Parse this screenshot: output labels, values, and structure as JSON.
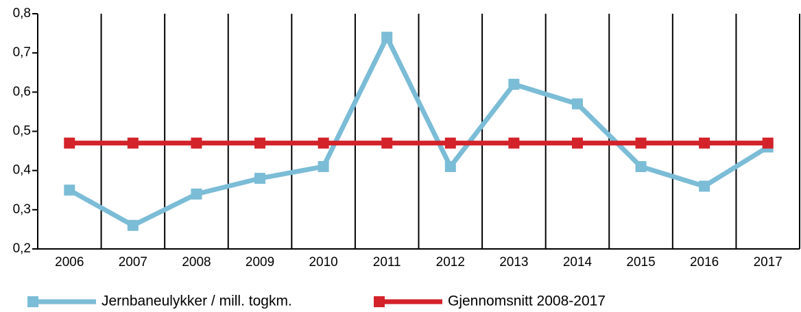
{
  "chart_data": {
    "type": "line",
    "categories": [
      "2006",
      "2007",
      "2008",
      "2009",
      "2010",
      "2011",
      "2012",
      "2013",
      "2014",
      "2015",
      "2016",
      "2017"
    ],
    "series": [
      {
        "name": "Jernbaneulykker / mill. togkm.",
        "color": "#7bbcd6",
        "values": [
          0.35,
          0.26,
          0.34,
          0.38,
          0.41,
          0.74,
          0.41,
          0.62,
          0.57,
          0.41,
          0.36,
          0.46
        ]
      },
      {
        "name": "Gjennomsnitt 2008-2017",
        "color": "#d3222a",
        "values": [
          0.47,
          0.47,
          0.47,
          0.47,
          0.47,
          0.47,
          0.47,
          0.47,
          0.47,
          0.47,
          0.47,
          0.47
        ]
      }
    ],
    "ylim": [
      0.2,
      0.8
    ],
    "yticks": [
      {
        "value": 0.2,
        "label": "0,2"
      },
      {
        "value": 0.3,
        "label": "0,3"
      },
      {
        "value": 0.4,
        "label": "0,4"
      },
      {
        "value": 0.5,
        "label": "0,5"
      },
      {
        "value": 0.6,
        "label": "0,6"
      },
      {
        "value": 0.7,
        "label": "0,7"
      },
      {
        "value": 0.8,
        "label": "0,8"
      }
    ],
    "legend": "bottom"
  }
}
